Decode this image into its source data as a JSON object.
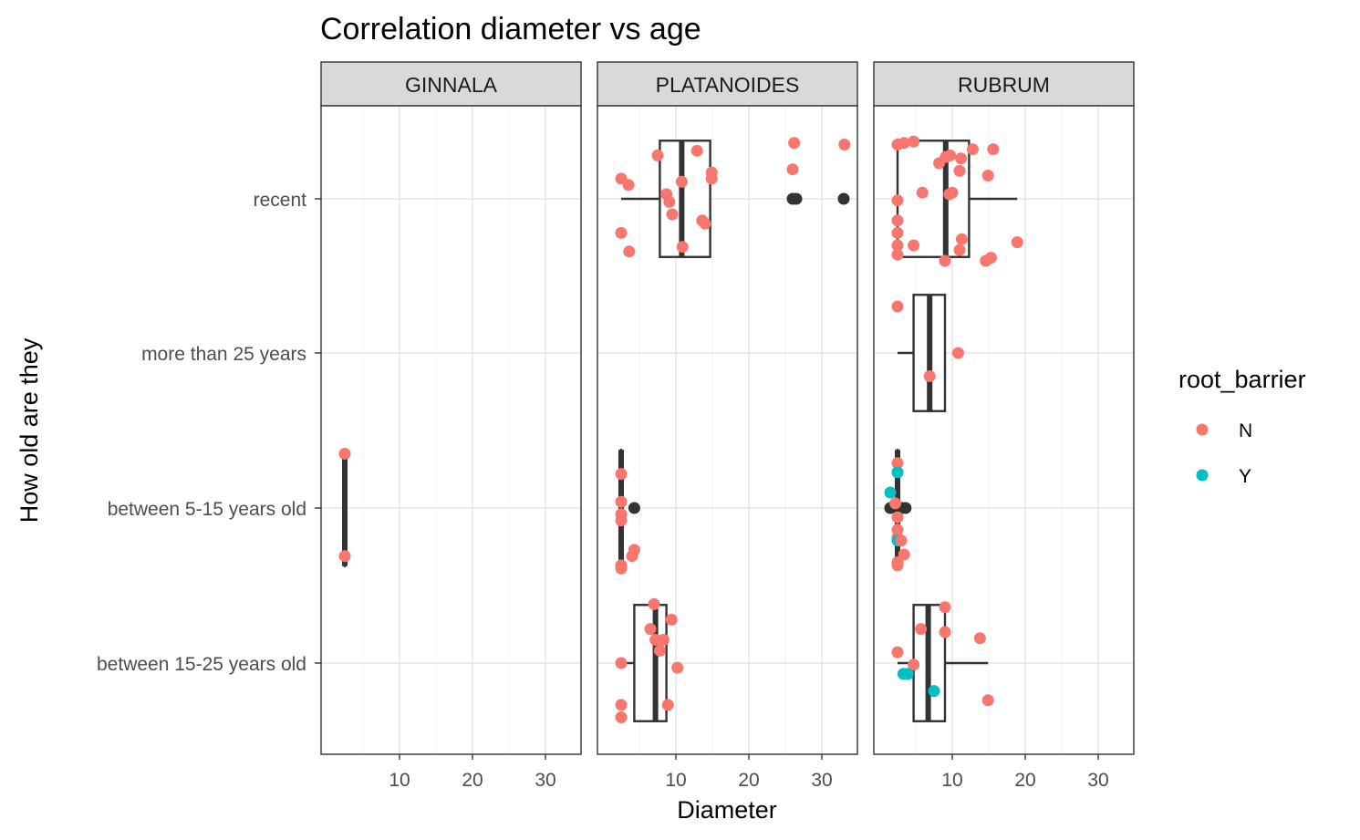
{
  "chart_data": {
    "type": "boxplot-jitter-faceted",
    "title": "Correlation diameter vs age",
    "xlabel": "Diameter",
    "ylabel": "How old are they",
    "xlim": [
      0,
      34
    ],
    "x_ticks": [
      10,
      20,
      30
    ],
    "x_tick_labels": [
      "10",
      "20",
      "30"
    ],
    "y_categories": [
      "recent",
      "more than 25 years",
      "between 5-15 years old",
      "between 15-25 years old"
    ],
    "grid": true,
    "legend": {
      "title": "root_barrier",
      "placement": "right",
      "entries": [
        {
          "label": "N",
          "color": "#F8766D"
        },
        {
          "label": "Y",
          "color": "#00BFC4"
        }
      ]
    },
    "facets": [
      {
        "name": "GINNALA",
        "boxes": [
          {
            "category": "between 5-15 years old",
            "lower": 2.5,
            "q1": 2.5,
            "median": 2.5,
            "q3": 2.5,
            "upper": 2.5,
            "outliers": []
          }
        ],
        "points": [
          {
            "category": "between 5-15 years old",
            "x": 2.5,
            "jitter": 0.35,
            "group": "N"
          },
          {
            "category": "between 5-15 years old",
            "x": 2.5,
            "jitter": -0.31,
            "group": "N"
          }
        ]
      },
      {
        "name": "PLATANOIDES",
        "boxes": [
          {
            "category": "recent",
            "lower": 2.5,
            "q1": 7.8,
            "median": 10.8,
            "q3": 14.7,
            "upper": 14.7,
            "outliers": [
              26,
              26.5,
              33
            ]
          },
          {
            "category": "between 5-15 years old",
            "lower": 2.5,
            "q1": 2.5,
            "median": 2.5,
            "q3": 2.5,
            "upper": 2.5,
            "outliers": [
              4.3
            ]
          },
          {
            "category": "between 15-25 years old",
            "lower": 2.5,
            "q1": 4.3,
            "median": 7.2,
            "q3": 8.7,
            "upper": 8.7,
            "outliers": []
          }
        ],
        "points": [
          {
            "category": "recent",
            "x": 12.9,
            "jitter": 0.31,
            "group": "N"
          },
          {
            "category": "recent",
            "x": 7.5,
            "jitter": 0.28,
            "group": "N"
          },
          {
            "category": "recent",
            "x": 26.2,
            "jitter": 0.36,
            "group": "N"
          },
          {
            "category": "recent",
            "x": 33.1,
            "jitter": 0.35,
            "group": "N"
          },
          {
            "category": "recent",
            "x": 26.0,
            "jitter": 0.19,
            "group": "N"
          },
          {
            "category": "recent",
            "x": 14.9,
            "jitter": 0.17,
            "group": "N"
          },
          {
            "category": "recent",
            "x": 14.9,
            "jitter": 0.13,
            "group": "N"
          },
          {
            "category": "recent",
            "x": 2.5,
            "jitter": 0.13,
            "group": "N"
          },
          {
            "category": "recent",
            "x": 3.5,
            "jitter": 0.09,
            "group": "N"
          },
          {
            "category": "recent",
            "x": 10.8,
            "jitter": 0.11,
            "group": "N"
          },
          {
            "category": "recent",
            "x": 8.7,
            "jitter": 0.03,
            "group": "N"
          },
          {
            "category": "recent",
            "x": 9.1,
            "jitter": -0.02,
            "group": "N"
          },
          {
            "category": "recent",
            "x": 9.5,
            "jitter": -0.1,
            "group": "N"
          },
          {
            "category": "recent",
            "x": 13.6,
            "jitter": -0.14,
            "group": "N"
          },
          {
            "category": "recent",
            "x": 14.0,
            "jitter": -0.16,
            "group": "N"
          },
          {
            "category": "recent",
            "x": 2.5,
            "jitter": -0.22,
            "group": "N"
          },
          {
            "category": "recent",
            "x": 10.9,
            "jitter": -0.31,
            "group": "N"
          },
          {
            "category": "recent",
            "x": 3.6,
            "jitter": -0.34,
            "group": "N"
          },
          {
            "category": "between 5-15 years old",
            "x": 2.5,
            "jitter": 0.22,
            "group": "N"
          },
          {
            "category": "between 5-15 years old",
            "x": 2.5,
            "jitter": 0.04,
            "group": "N"
          },
          {
            "category": "between 5-15 years old",
            "x": 2.5,
            "jitter": -0.04,
            "group": "N"
          },
          {
            "category": "between 5-15 years old",
            "x": 2.5,
            "jitter": -0.08,
            "group": "N"
          },
          {
            "category": "between 5-15 years old",
            "x": 4.3,
            "jitter": -0.27,
            "group": "N"
          },
          {
            "category": "between 5-15 years old",
            "x": 4.0,
            "jitter": -0.31,
            "group": "N"
          },
          {
            "category": "between 5-15 years old",
            "x": 2.5,
            "jitter": -0.37,
            "group": "N"
          },
          {
            "category": "between 5-15 years old",
            "x": 2.5,
            "jitter": -0.39,
            "group": "N"
          },
          {
            "category": "between 15-25 years old",
            "x": 7.0,
            "jitter": 0.38,
            "group": "N"
          },
          {
            "category": "between 15-25 years old",
            "x": 9.4,
            "jitter": 0.28,
            "group": "N"
          },
          {
            "category": "between 15-25 years old",
            "x": 6.5,
            "jitter": 0.22,
            "group": "N"
          },
          {
            "category": "between 15-25 years old",
            "x": 7.2,
            "jitter": 0.15,
            "group": "N"
          },
          {
            "category": "between 15-25 years old",
            "x": 8.3,
            "jitter": 0.15,
            "group": "N"
          },
          {
            "category": "between 15-25 years old",
            "x": 7.8,
            "jitter": 0.08,
            "group": "N"
          },
          {
            "category": "between 15-25 years old",
            "x": 2.5,
            "jitter": 0.0,
            "group": "N"
          },
          {
            "category": "between 15-25 years old",
            "x": 10.2,
            "jitter": -0.03,
            "group": "N"
          },
          {
            "category": "between 15-25 years old",
            "x": 8.9,
            "jitter": -0.27,
            "group": "N"
          },
          {
            "category": "between 15-25 years old",
            "x": 2.5,
            "jitter": -0.27,
            "group": "N"
          },
          {
            "category": "between 15-25 years old",
            "x": 2.5,
            "jitter": -0.35,
            "group": "N"
          }
        ]
      },
      {
        "name": "RUBRUM",
        "boxes": [
          {
            "category": "recent",
            "lower": 2.5,
            "q1": 2.5,
            "median": 9.1,
            "q3": 12.3,
            "upper": 18.9,
            "outliers": []
          },
          {
            "category": "more than 25 years",
            "lower": 2.5,
            "q1": 4.7,
            "median": 6.9,
            "q3": 9.0,
            "upper": 9.0,
            "outliers": []
          },
          {
            "category": "between 5-15 years old",
            "lower": 2.5,
            "q1": 2.5,
            "median": 2.5,
            "q3": 2.5,
            "upper": 2.5,
            "outliers": [
              1.5,
              2.2,
              3.1,
              3.6
            ]
          },
          {
            "category": "between 15-25 years old",
            "lower": 2.5,
            "q1": 4.7,
            "median": 6.7,
            "q3": 9.0,
            "upper": 14.9,
            "outliers": []
          }
        ],
        "points": [
          {
            "category": "recent",
            "x": 4.7,
            "jitter": 0.37,
            "group": "N"
          },
          {
            "category": "recent",
            "x": 2.5,
            "jitter": 0.35,
            "group": "N"
          },
          {
            "category": "recent",
            "x": 3.4,
            "jitter": 0.36,
            "group": "N"
          },
          {
            "category": "recent",
            "x": 15.6,
            "jitter": 0.32,
            "group": "N"
          },
          {
            "category": "recent",
            "x": 12.8,
            "jitter": 0.32,
            "group": "N"
          },
          {
            "category": "recent",
            "x": 9.1,
            "jitter": 0.27,
            "group": "N"
          },
          {
            "category": "recent",
            "x": 9.7,
            "jitter": 0.28,
            "group": "N"
          },
          {
            "category": "recent",
            "x": 11.2,
            "jitter": 0.26,
            "group": "N"
          },
          {
            "category": "recent",
            "x": 8.2,
            "jitter": 0.23,
            "group": "N"
          },
          {
            "category": "recent",
            "x": 11.0,
            "jitter": 0.18,
            "group": "N"
          },
          {
            "category": "recent",
            "x": 14.9,
            "jitter": 0.15,
            "group": "N"
          },
          {
            "category": "recent",
            "x": 5.9,
            "jitter": 0.04,
            "group": "N"
          },
          {
            "category": "recent",
            "x": 10.0,
            "jitter": 0.04,
            "group": "N"
          },
          {
            "category": "recent",
            "x": 9.6,
            "jitter": 0.03,
            "group": "N"
          },
          {
            "category": "recent",
            "x": 2.5,
            "jitter": -0.01,
            "group": "N"
          },
          {
            "category": "recent",
            "x": 2.5,
            "jitter": -0.14,
            "group": "N"
          },
          {
            "category": "recent",
            "x": 11.3,
            "jitter": -0.26,
            "group": "N"
          },
          {
            "category": "recent",
            "x": 2.5,
            "jitter": -0.22,
            "group": "N"
          },
          {
            "category": "recent",
            "x": 18.9,
            "jitter": -0.28,
            "group": "N"
          },
          {
            "category": "recent",
            "x": 2.5,
            "jitter": -0.3,
            "group": "N"
          },
          {
            "category": "recent",
            "x": 4.7,
            "jitter": -0.3,
            "group": "N"
          },
          {
            "category": "recent",
            "x": 2.5,
            "jitter": -0.36,
            "group": "N"
          },
          {
            "category": "recent",
            "x": 11.0,
            "jitter": -0.33,
            "group": "N"
          },
          {
            "category": "recent",
            "x": 15.3,
            "jitter": -0.38,
            "group": "N"
          },
          {
            "category": "recent",
            "x": 14.6,
            "jitter": -0.4,
            "group": "N"
          },
          {
            "category": "recent",
            "x": 9.0,
            "jitter": -0.4,
            "group": "N"
          },
          {
            "category": "more than 25 years",
            "x": 2.5,
            "jitter": 0.3,
            "group": "N"
          },
          {
            "category": "more than 25 years",
            "x": 10.8,
            "jitter": 0.0,
            "group": "N"
          },
          {
            "category": "more than 25 years",
            "x": 6.9,
            "jitter": -0.15,
            "group": "N"
          },
          {
            "category": "between 5-15 years old",
            "x": 2.5,
            "jitter": 0.29,
            "group": "N"
          },
          {
            "category": "between 5-15 years old",
            "x": 2.5,
            "jitter": 0.23,
            "group": "Y"
          },
          {
            "category": "between 5-15 years old",
            "x": 1.5,
            "jitter": 0.1,
            "group": "Y"
          },
          {
            "category": "between 5-15 years old",
            "x": 2.2,
            "jitter": 0.03,
            "group": "N"
          },
          {
            "category": "between 5-15 years old",
            "x": 2.5,
            "jitter": -0.06,
            "group": "N"
          },
          {
            "category": "between 5-15 years old",
            "x": 2.5,
            "jitter": -0.14,
            "group": "N"
          },
          {
            "category": "between 5-15 years old",
            "x": 2.5,
            "jitter": -0.19,
            "group": "N"
          },
          {
            "category": "between 5-15 years old",
            "x": 2.5,
            "jitter": -0.21,
            "group": "Y"
          },
          {
            "category": "between 5-15 years old",
            "x": 3.0,
            "jitter": -0.21,
            "group": "N"
          },
          {
            "category": "between 5-15 years old",
            "x": 3.4,
            "jitter": -0.3,
            "group": "N"
          },
          {
            "category": "between 5-15 years old",
            "x": 2.5,
            "jitter": -0.35,
            "group": "N"
          },
          {
            "category": "between 5-15 years old",
            "x": 2.5,
            "jitter": -0.37,
            "group": "N"
          },
          {
            "category": "between 15-25 years old",
            "x": 9.0,
            "jitter": 0.36,
            "group": "N"
          },
          {
            "category": "between 15-25 years old",
            "x": 5.7,
            "jitter": 0.22,
            "group": "N"
          },
          {
            "category": "between 15-25 years old",
            "x": 9.0,
            "jitter": 0.2,
            "group": "N"
          },
          {
            "category": "between 15-25 years old",
            "x": 13.8,
            "jitter": 0.16,
            "group": "N"
          },
          {
            "category": "between 15-25 years old",
            "x": 2.5,
            "jitter": 0.07,
            "group": "N"
          },
          {
            "category": "between 15-25 years old",
            "x": 4.7,
            "jitter": -0.01,
            "group": "N"
          },
          {
            "category": "between 15-25 years old",
            "x": 3.9,
            "jitter": -0.07,
            "group": "Y"
          },
          {
            "category": "between 15-25 years old",
            "x": 3.3,
            "jitter": -0.07,
            "group": "Y"
          },
          {
            "category": "between 15-25 years old",
            "x": 7.5,
            "jitter": -0.18,
            "group": "Y"
          },
          {
            "category": "between 15-25 years old",
            "x": 14.9,
            "jitter": -0.24,
            "group": "N"
          }
        ]
      }
    ]
  }
}
